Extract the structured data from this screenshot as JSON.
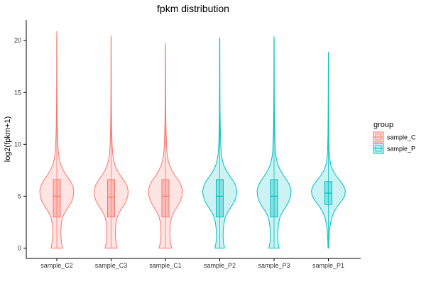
{
  "chart_data": {
    "type": "violin",
    "title": "fpkm distribution",
    "xlabel": "",
    "ylabel": "log2(fpkm+1)",
    "ylim": [
      -1,
      22
    ],
    "yticks": [
      0,
      5,
      10,
      15,
      20
    ],
    "grid": false,
    "legend": {
      "title": "group",
      "placement": "right",
      "entries": [
        {
          "name": "sample_C",
          "color": "#F8766D"
        },
        {
          "name": "sample_P",
          "color": "#00BFC4"
        }
      ]
    },
    "categories": [
      "sample_C2",
      "sample_C3",
      "sample_C1",
      "sample_P2",
      "sample_P3",
      "sample_P1"
    ],
    "groups": [
      "sample_C",
      "sample_C",
      "sample_C",
      "sample_P",
      "sample_P",
      "sample_P"
    ],
    "stats": [
      {
        "min": 0,
        "q1": 3.0,
        "median": 5.0,
        "q3": 6.6,
        "max": 20.9
      },
      {
        "min": 0,
        "q1": 3.0,
        "median": 4.9,
        "q3": 6.6,
        "max": 20.5
      },
      {
        "min": 0,
        "q1": 3.0,
        "median": 5.0,
        "q3": 6.6,
        "max": 19.8
      },
      {
        "min": 0,
        "q1": 3.0,
        "median": 5.0,
        "q3": 6.6,
        "max": 20.3
      },
      {
        "min": 0,
        "q1": 3.0,
        "median": 5.0,
        "q3": 6.6,
        "max": 20.4
      },
      {
        "min": 0,
        "q1": 4.2,
        "median": 5.3,
        "q3": 6.4,
        "max": 18.9
      }
    ],
    "density_y": [
      0,
      0.5,
      1,
      1.5,
      2,
      2.5,
      3,
      3.5,
      4,
      4.5,
      5,
      5.5,
      6,
      6.5,
      7,
      7.5,
      8,
      8.5,
      9,
      9.5,
      10,
      11,
      12,
      13,
      14,
      15,
      16,
      17,
      18,
      19,
      20,
      21
    ],
    "density": [
      [
        0.34,
        0.28,
        0.25,
        0.24,
        0.25,
        0.28,
        0.35,
        0.5,
        0.7,
        0.88,
        0.97,
        1.0,
        0.94,
        0.78,
        0.56,
        0.38,
        0.24,
        0.16,
        0.11,
        0.08,
        0.065,
        0.045,
        0.03,
        0.022,
        0.017,
        0.014,
        0.012,
        0.01,
        0.009,
        0.008,
        0.007,
        0.006
      ],
      [
        0.36,
        0.29,
        0.26,
        0.25,
        0.26,
        0.29,
        0.36,
        0.5,
        0.7,
        0.88,
        0.98,
        1.0,
        0.93,
        0.76,
        0.54,
        0.36,
        0.23,
        0.15,
        0.1,
        0.075,
        0.06,
        0.04,
        0.028,
        0.02,
        0.016,
        0.013,
        0.011,
        0.009,
        0.008,
        0.007,
        0.006,
        0
      ],
      [
        0.38,
        0.3,
        0.27,
        0.26,
        0.27,
        0.3,
        0.37,
        0.51,
        0.7,
        0.87,
        0.97,
        1.0,
        0.94,
        0.78,
        0.56,
        0.38,
        0.24,
        0.16,
        0.11,
        0.08,
        0.065,
        0.045,
        0.03,
        0.022,
        0.017,
        0.014,
        0.012,
        0.01,
        0.009,
        0.007,
        0,
        0
      ],
      [
        0.28,
        0.22,
        0.2,
        0.2,
        0.22,
        0.26,
        0.33,
        0.48,
        0.68,
        0.86,
        0.97,
        1.0,
        0.94,
        0.78,
        0.56,
        0.37,
        0.23,
        0.15,
        0.1,
        0.075,
        0.06,
        0.04,
        0.028,
        0.02,
        0.016,
        0.013,
        0.011,
        0.009,
        0.008,
        0.007,
        0.006,
        0
      ],
      [
        0.3,
        0.24,
        0.22,
        0.22,
        0.24,
        0.28,
        0.35,
        0.5,
        0.7,
        0.87,
        0.97,
        1.0,
        0.93,
        0.76,
        0.55,
        0.37,
        0.23,
        0.15,
        0.1,
        0.075,
        0.06,
        0.04,
        0.028,
        0.02,
        0.016,
        0.013,
        0.011,
        0.009,
        0.008,
        0.007,
        0.006,
        0
      ],
      [
        0.02,
        0.03,
        0.04,
        0.06,
        0.09,
        0.14,
        0.22,
        0.34,
        0.52,
        0.76,
        0.95,
        1.0,
        0.9,
        0.68,
        0.44,
        0.26,
        0.15,
        0.09,
        0.06,
        0.045,
        0.035,
        0.025,
        0.018,
        0.014,
        0.011,
        0.009,
        0.008,
        0.006,
        0.005,
        0,
        0,
        0
      ]
    ]
  }
}
